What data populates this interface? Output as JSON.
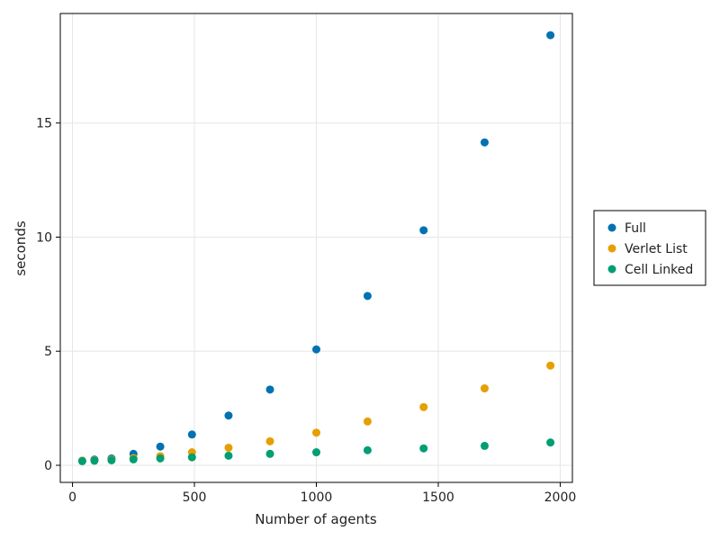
{
  "chart_data": {
    "type": "scatter",
    "title": "",
    "xlabel": "Number of agents",
    "ylabel": "seconds",
    "xlim": [
      -50,
      2050
    ],
    "ylim": [
      -0.75,
      19.8
    ],
    "xticks": [
      0,
      500,
      1000,
      1500,
      2000
    ],
    "yticks": [
      0,
      5,
      10,
      15
    ],
    "grid": true,
    "legend_position": "right",
    "series": [
      {
        "name": "Full",
        "color": "#0072B2",
        "x": [
          40,
          90,
          160,
          250,
          360,
          490,
          640,
          810,
          1000,
          1210,
          1440,
          1690,
          1960
        ],
        "y": [
          0.2,
          0.25,
          0.3,
          0.5,
          0.82,
          1.35,
          2.18,
          3.32,
          5.08,
          7.42,
          10.3,
          14.15,
          18.85
        ]
      },
      {
        "name": "Verlet List",
        "color": "#E69F00",
        "x": [
          40,
          90,
          160,
          250,
          360,
          490,
          640,
          810,
          1000,
          1210,
          1440,
          1690,
          1960
        ],
        "y": [
          0.2,
          0.22,
          0.25,
          0.32,
          0.4,
          0.57,
          0.77,
          1.05,
          1.43,
          1.92,
          2.55,
          3.37,
          4.37
        ]
      },
      {
        "name": "Cell Linked",
        "color": "#009E73",
        "x": [
          40,
          90,
          160,
          250,
          360,
          490,
          640,
          810,
          1000,
          1210,
          1440,
          1690,
          1960
        ],
        "y": [
          0.18,
          0.2,
          0.22,
          0.26,
          0.3,
          0.35,
          0.42,
          0.5,
          0.57,
          0.66,
          0.74,
          0.85,
          1.0
        ]
      }
    ]
  }
}
